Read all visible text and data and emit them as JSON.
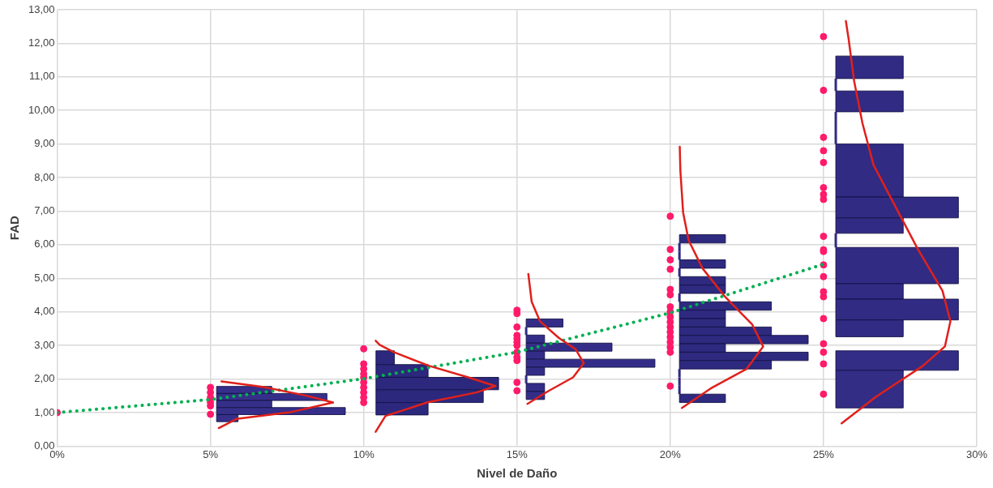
{
  "chart_data": {
    "type": "scatter",
    "xlabel": "Nivel de Daño",
    "ylabel": "FAD",
    "xlim": [
      0,
      30
    ],
    "xticks": [
      {
        "value": 0,
        "label": "0%"
      },
      {
        "value": 5,
        "label": "5%"
      },
      {
        "value": 10,
        "label": "10%"
      },
      {
        "value": 15,
        "label": "15%"
      },
      {
        "value": 20,
        "label": "20%"
      },
      {
        "value": 25,
        "label": "25%"
      },
      {
        "value": 30,
        "label": "30%"
      }
    ],
    "ylim": [
      0,
      13
    ],
    "yticks": [
      {
        "value": 0,
        "label": "0,00"
      },
      {
        "value": 1,
        "label": "1,00"
      },
      {
        "value": 2,
        "label": "2,00"
      },
      {
        "value": 3,
        "label": "3,00"
      },
      {
        "value": 4,
        "label": "4,00"
      },
      {
        "value": 5,
        "label": "5,00"
      },
      {
        "value": 6,
        "label": "6,00"
      },
      {
        "value": 7,
        "label": "7,00"
      },
      {
        "value": 8,
        "label": "8,00"
      },
      {
        "value": 9,
        "label": "9,00"
      },
      {
        "value": 10,
        "label": "10,00"
      },
      {
        "value": 11,
        "label": "11,00"
      },
      {
        "value": 12,
        "label": "12,00"
      },
      {
        "value": 13,
        "label": "13,00"
      }
    ],
    "grid": true,
    "orientation": "horizontal",
    "series": [
      {
        "type": "histogram",
        "color": "#312b84",
        "bins": [
          11.62,
          10.95,
          10.58,
          9.96,
          9.0,
          7.42,
          6.8,
          6.34,
          5.92,
          4.84,
          4.38,
          3.76,
          3.26
        ],
        "base": [
          25.4,
          25.4,
          25.4,
          25.4,
          25.4,
          25.4,
          25.4,
          25.4,
          25.4,
          25.4,
          25.4,
          25.4
        ],
        "values": [
          2.2,
          0,
          2.2,
          0,
          2.2,
          4.0,
          2.2,
          0,
          4.0,
          2.2,
          4.0,
          2.2
        ]
      },
      {
        "type": "histogram",
        "color": "#2e2a80",
        "bins": [
          6.3,
          6.05,
          5.8,
          5.55,
          5.3,
          5.05,
          4.8,
          4.55,
          4.3,
          4.05,
          3.8,
          3.55,
          3.3,
          3.05,
          2.8,
          2.55,
          2.3,
          2.05,
          1.8,
          1.55,
          1.3
        ],
        "base": [
          20.3,
          20.3,
          20.3,
          20.3,
          20.3,
          20.3,
          20.3,
          20.3,
          20.3,
          20.3,
          20.3,
          20.3,
          20.3,
          20.3,
          20.3,
          20.3,
          20.3,
          20.3,
          20.3,
          20.3
        ],
        "values": [
          1.5,
          0,
          0,
          1.5,
          0,
          1.5,
          1.5,
          0,
          3.0,
          1.5,
          1.5,
          3.0,
          4.2,
          1.5,
          4.2,
          3.0,
          0,
          0,
          0,
          1.5
        ]
      },
      {
        "type": "histogram",
        "color": "#342d88",
        "bins": [
          3.79,
          3.55,
          3.31,
          3.07,
          2.83,
          2.59,
          2.35,
          2.11,
          1.87,
          1.63,
          1.39
        ],
        "base": [
          15.3,
          15.3,
          15.3,
          15.3,
          15.3,
          15.3,
          15.3,
          15.3,
          15.3,
          15.3
        ],
        "values": [
          1.2,
          0,
          0.6,
          2.8,
          0.6,
          4.2,
          0.6,
          0,
          0.6,
          0.6
        ]
      },
      {
        "type": "histogram",
        "color": "#2c287d",
        "bins": [
          2.84,
          2.43,
          2.05,
          1.68,
          1.3,
          0.93
        ],
        "base": [
          10.4,
          10.4,
          10.4,
          10.4,
          10.4
        ],
        "values": [
          0.6,
          1.7,
          4.0,
          3.5,
          1.7
        ]
      },
      {
        "type": "histogram",
        "color": "#332d86",
        "bins": [
          2.84,
          2.26,
          1.14
        ],
        "base": [
          25.4,
          25.4
        ],
        "values": [
          4.0,
          2.2
        ]
      },
      {
        "type": "histogram",
        "color": "#362f8a",
        "bins": [
          1.78,
          1.57,
          1.36,
          1.15,
          0.94,
          0.73
        ],
        "base": [
          5.2,
          5.2,
          5.2,
          5.2,
          5.2
        ],
        "values": [
          1.8,
          3.6,
          1.8,
          4.2,
          0.7
        ]
      },
      {
        "type": "line",
        "color": "#e0201b",
        "marker": "none",
        "x": [
          0.54,
          0.81,
          1.02,
          1.3,
          1.51,
          1.76,
          1.93
        ],
        "values": [
          5.27,
          5.85,
          7.65,
          9.0,
          8.1,
          6.75,
          5.36
        ]
      },
      {
        "type": "line",
        "color": "#e0201b",
        "marker": "none",
        "x": [
          0.43,
          0.9,
          1.3,
          1.6,
          1.79,
          2.05,
          2.39,
          2.8,
          3.02,
          3.14
        ],
        "values": [
          10.39,
          10.71,
          12.06,
          13.68,
          14.3,
          13.41,
          12.14,
          10.98,
          10.52,
          10.39
        ]
      },
      {
        "type": "line",
        "color": "#e0201b",
        "marker": "none",
        "x": [
          1.26,
          1.64,
          2.05,
          2.47,
          2.89,
          3.22,
          3.72,
          4.3,
          5.13
        ],
        "values": [
          15.34,
          16.02,
          16.83,
          17.18,
          16.91,
          16.37,
          15.75,
          15.48,
          15.37
        ]
      },
      {
        "type": "line",
        "color": "#e0201b",
        "marker": "none",
        "x": [
          1.14,
          1.72,
          2.3,
          2.97,
          3.63,
          4.47,
          5.3,
          6.13,
          6.96,
          8.21,
          8.92
        ],
        "values": [
          20.38,
          21.32,
          22.49,
          23.03,
          22.67,
          21.77,
          21.05,
          20.6,
          20.42,
          20.33,
          20.31
        ]
      },
      {
        "type": "line",
        "color": "#e0201b",
        "marker": "none",
        "x": [
          0.68,
          1.47,
          2.39,
          2.97,
          3.72,
          4.63,
          5.88,
          7.13,
          8.38,
          9.62,
          10.87,
          12.12,
          12.66
        ],
        "values": [
          25.59,
          26.71,
          28.24,
          28.96,
          29.14,
          28.88,
          28.07,
          27.35,
          26.63,
          26.27,
          26.0,
          25.82,
          25.73
        ]
      },
      {
        "type": "line",
        "color": "#00b050",
        "marker": "none",
        "line_style": "dotted",
        "x": [
          1.0,
          1.39,
          2.01,
          2.8,
          3.97,
          5.42
        ],
        "values": [
          0,
          5,
          10,
          15,
          20,
          25
        ]
      },
      {
        "color": "#ff1a6a",
        "marker": "circle",
        "x": [
          1.0,
          1.75,
          1.6,
          1.45,
          1.3,
          1.2,
          0.95,
          2.9,
          2.45,
          2.3,
          2.15,
          2.05,
          1.9,
          1.75,
          1.6,
          1.45,
          1.3,
          4.05,
          3.95,
          3.55,
          3.3,
          3.2,
          3.1,
          3.0,
          2.8,
          2.65,
          2.55,
          1.9,
          1.65,
          6.85,
          5.86,
          5.55,
          5.27,
          4.67,
          4.51,
          4.15,
          4.0,
          3.85,
          3.7,
          3.55,
          3.4,
          3.25,
          3.1,
          2.95,
          2.8,
          1.79,
          12.2,
          10.6,
          9.2,
          8.8,
          8.45,
          7.7,
          7.5,
          7.35,
          6.25,
          5.85,
          5.8,
          5.4,
          5.05,
          4.6,
          4.45,
          3.8,
          3.05,
          2.8,
          2.45,
          1.55
        ],
        "values": [
          0,
          5,
          5,
          5,
          5,
          5,
          5,
          10,
          10,
          10,
          10,
          10,
          10,
          10,
          10,
          10,
          10,
          15,
          15,
          15,
          15,
          15,
          15,
          15,
          15,
          15,
          15,
          15,
          15,
          20,
          20,
          20,
          20,
          20,
          20,
          20,
          20,
          20,
          20,
          20,
          20,
          20,
          20,
          20,
          20,
          20,
          25,
          25,
          25,
          25,
          25,
          25,
          25,
          25,
          25,
          25,
          25,
          25,
          25,
          25,
          25,
          25,
          25,
          25,
          25,
          25
        ]
      }
    ]
  }
}
